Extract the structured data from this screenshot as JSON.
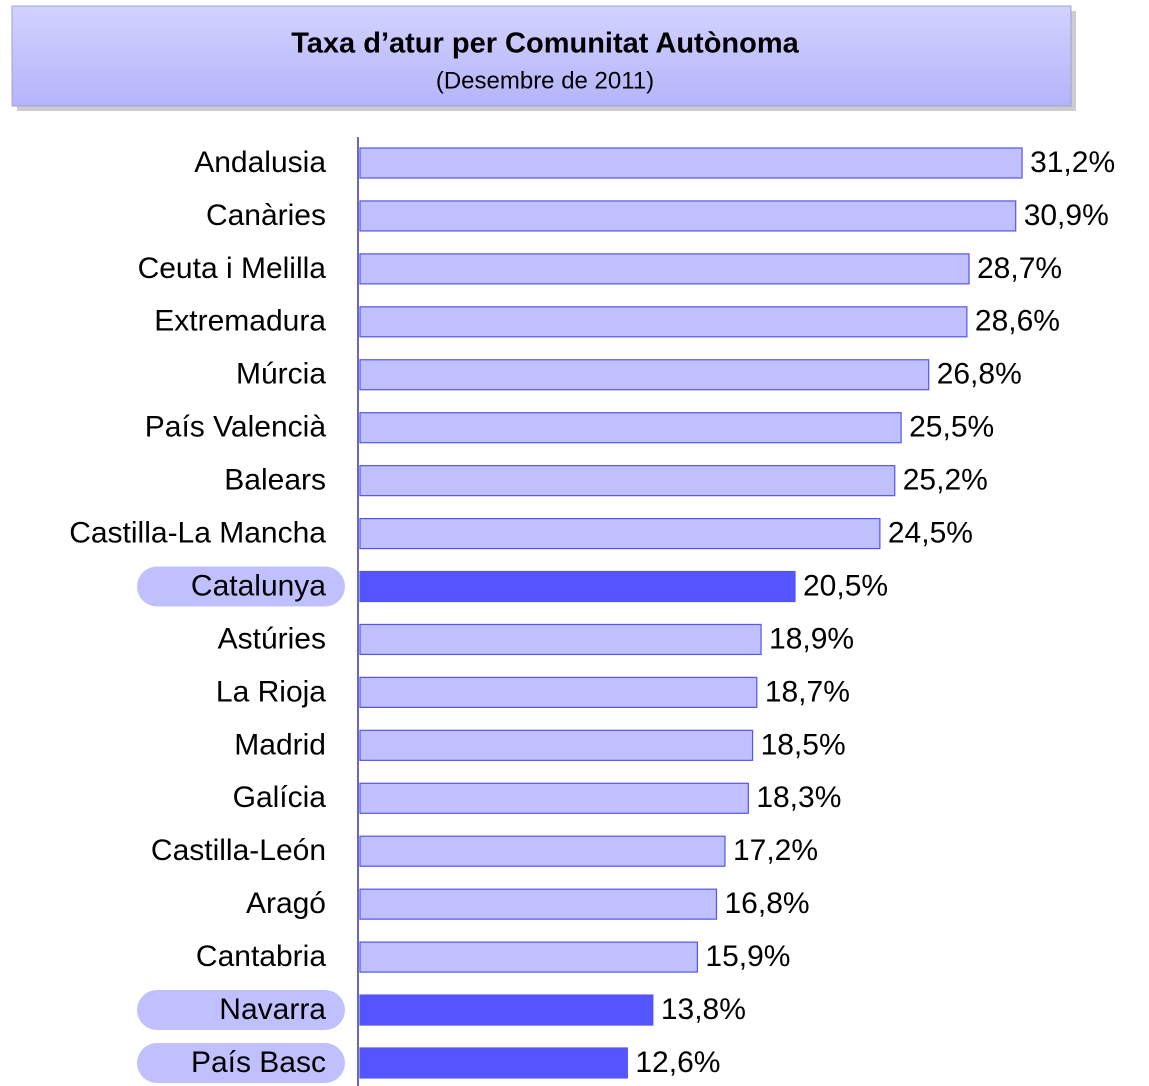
{
  "chart_data": {
    "type": "hbar",
    "title": "Taxa d’atur per Comunitat Autònoma",
    "subtitle": "(Desembre de 2011)",
    "categories": [
      "Andalusia",
      "Canàries",
      "Ceuta i Melilla",
      "Extremadura",
      "Múrcia",
      "País Valencià",
      "Balears",
      "Castilla-La Mancha",
      "Catalunya",
      "Astúries",
      "La Rioja",
      "Madrid",
      "Galícia",
      "Castilla-León",
      "Aragó",
      "Cantabria",
      "Navarra",
      "País Basc"
    ],
    "values": [
      31.2,
      30.9,
      28.7,
      28.6,
      26.8,
      25.5,
      25.2,
      24.5,
      20.5,
      18.9,
      18.7,
      18.5,
      18.3,
      17.2,
      16.8,
      15.9,
      13.8,
      12.6
    ],
    "value_labels": [
      "31,2%",
      "30,9%",
      "28,7%",
      "28,6%",
      "26,8%",
      "25,5%",
      "25,2%",
      "24,5%",
      "20,5%",
      "18,9%",
      "18,7%",
      "18,5%",
      "18,3%",
      "17,2%",
      "16,8%",
      "15,9%",
      "13,8%",
      "12,6%"
    ],
    "color": "#c0c0ff",
    "colors": [
      "#c0c0ff",
      "#c0c0ff",
      "#c0c0ff",
      "#c0c0ff",
      "#c0c0ff",
      "#c0c0ff",
      "#c0c0ff",
      "#c0c0ff",
      "#5555ff",
      "#c0c0ff",
      "#c0c0ff",
      "#c0c0ff",
      "#c0c0ff",
      "#c0c0ff",
      "#c0c0ff",
      "#c0c0ff",
      "#5555ff",
      "#5555ff"
    ]
  }
}
